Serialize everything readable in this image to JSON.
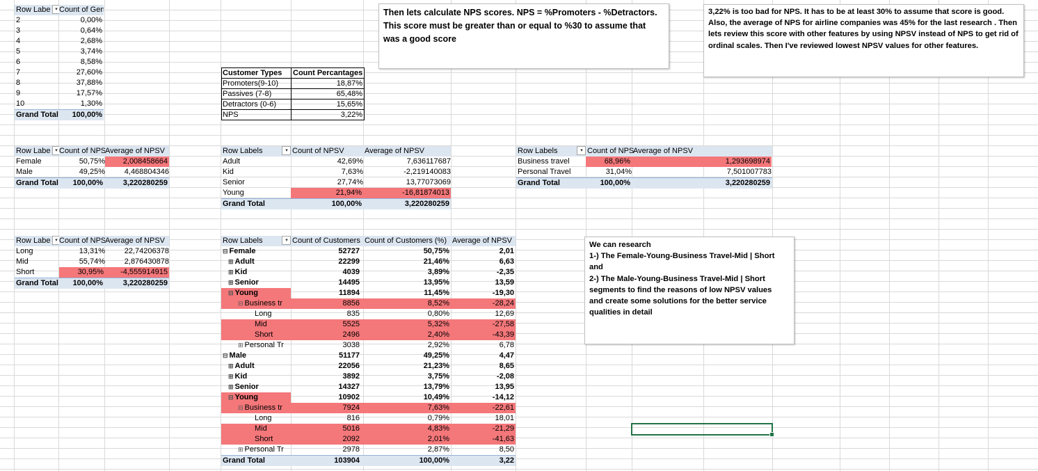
{
  "gender_pivot": {
    "headers": [
      "Row Labe",
      "Count of Gender"
    ],
    "rows": [
      [
        "2",
        "0,00%"
      ],
      [
        "3",
        "0,64%"
      ],
      [
        "4",
        "2,68%"
      ],
      [
        "5",
        "3,74%"
      ],
      [
        "6",
        "8,58%"
      ],
      [
        "7",
        "27,60%"
      ],
      [
        "8",
        "37,88%"
      ],
      [
        "9",
        "17,57%"
      ],
      [
        "10",
        "1,30%"
      ]
    ],
    "total": [
      "Grand Total",
      "100,00%"
    ]
  },
  "customer_types": {
    "headers": [
      "Customer Types",
      "Count Percantages"
    ],
    "rows": [
      [
        "Promoters(9-10)",
        "18,87%"
      ],
      [
        "Passives (7-8)",
        "65,48%"
      ],
      [
        "Detractors (0-6)",
        "15,65%"
      ],
      [
        "NPS",
        "3,22%"
      ]
    ]
  },
  "note_nps": "Then lets calculate NPS scores. NPS = %Promoters - %Detractors. This score must be greater than or equal to %30 to assume that was a good score",
  "note_bad": "3,22% is too bad for NPS. It has to be at least 30% to assume that score is good. Also, the average of NPS for airline companies was 45% for the last research . Then lets review this score with other features by using NPSV instead of NPS to get rid of ordinal scales. Then I've reviewed lowest NPSV values for other features.",
  "gender_npsv": {
    "headers": [
      "Row Labe",
      "Count of NPS",
      "Average of NPSV"
    ],
    "rows": [
      [
        "Female",
        "50,75%",
        "2,008458664"
      ],
      [
        "Male",
        "49,25%",
        "4,468804346"
      ]
    ],
    "total": [
      "Grand Total",
      "100,00%",
      "3,220280259"
    ]
  },
  "age_npsv": {
    "headers": [
      "Row Labels",
      "Count of NPSV",
      "Average of NPSV"
    ],
    "rows": [
      [
        "Adult",
        "42,69%",
        "7,636117687"
      ],
      [
        "Kid",
        "7,63%",
        "-2,219140083"
      ],
      [
        "Senior",
        "27,74%",
        "13,77073069"
      ],
      [
        "Young",
        "21,94%",
        "-16,81874013"
      ]
    ],
    "total": [
      "Grand Total",
      "100,00%",
      "3,220280259"
    ]
  },
  "travel_npsv": {
    "headers": [
      "Row Labels",
      "Count of NPS",
      "Average of NPSV"
    ],
    "rows": [
      [
        "Business travel",
        "68,96%",
        "1,293698974"
      ],
      [
        "Personal Travel",
        "31,04%",
        "7,501007783"
      ]
    ],
    "total": [
      "Grand Total",
      "100,00%",
      "3,220280259"
    ]
  },
  "distance_npsv": {
    "headers": [
      "Row Labe",
      "Count of NPS",
      "Average of NPSV"
    ],
    "rows": [
      [
        "Long",
        "13,31%",
        "22,74206378"
      ],
      [
        "Mid",
        "55,74%",
        "2,876430878"
      ],
      [
        "Short",
        "30,95%",
        "-4,555914915"
      ]
    ],
    "total": [
      "Grand Total",
      "100,00%",
      "3,220280259"
    ]
  },
  "segment_pivot": {
    "headers": [
      "Row Labels",
      "Count of Customers",
      "Count of Customers (%)",
      "Average of NPSV"
    ],
    "rows": [
      {
        "label": "Female",
        "sym": "⊟",
        "count": "52727",
        "pct": "50,75%",
        "avg": "2,01",
        "lvl": 0,
        "hl": false,
        "hlLabel": false
      },
      {
        "label": "Adult",
        "sym": "⊞",
        "count": "22299",
        "pct": "21,46%",
        "avg": "6,63",
        "lvl": 1,
        "hl": false,
        "hlLabel": false
      },
      {
        "label": "Kid",
        "sym": "⊞",
        "count": "4039",
        "pct": "3,89%",
        "avg": "-2,35",
        "lvl": 1,
        "hl": false,
        "hlLabel": false
      },
      {
        "label": "Senior",
        "sym": "⊞",
        "count": "14495",
        "pct": "13,95%",
        "avg": "13,59",
        "lvl": 1,
        "hl": false,
        "hlLabel": false
      },
      {
        "label": "Young",
        "sym": "⊟",
        "count": "11894",
        "pct": "11,45%",
        "avg": "-19,30",
        "lvl": 1,
        "hl": false,
        "hlLabel": true
      },
      {
        "label": "Business tr",
        "sym": "⊟",
        "count": "8856",
        "pct": "8,52%",
        "avg": "-28,24",
        "lvl": 2,
        "hl": true,
        "hlLabel": true
      },
      {
        "label": "Long",
        "sym": "",
        "count": "835",
        "pct": "0,80%",
        "avg": "12,69",
        "lvl": 3,
        "hl": false,
        "hlLabel": false
      },
      {
        "label": "Mid",
        "sym": "",
        "count": "5525",
        "pct": "5,32%",
        "avg": "-27,58",
        "lvl": 3,
        "hl": true,
        "hlLabel": true
      },
      {
        "label": "Short",
        "sym": "",
        "count": "2496",
        "pct": "2,40%",
        "avg": "-43,39",
        "lvl": 3,
        "hl": true,
        "hlLabel": true
      },
      {
        "label": "Personal Tr",
        "sym": "⊞",
        "count": "3038",
        "pct": "2,92%",
        "avg": "6,78",
        "lvl": 2,
        "hl": false,
        "hlLabel": false
      },
      {
        "label": "Male",
        "sym": "⊟",
        "count": "51177",
        "pct": "49,25%",
        "avg": "4,47",
        "lvl": 0,
        "hl": false,
        "hlLabel": false
      },
      {
        "label": "Adult",
        "sym": "⊞",
        "count": "22056",
        "pct": "21,23%",
        "avg": "8,65",
        "lvl": 1,
        "hl": false,
        "hlLabel": false
      },
      {
        "label": "Kid",
        "sym": "⊞",
        "count": "3892",
        "pct": "3,75%",
        "avg": "-2,08",
        "lvl": 1,
        "hl": false,
        "hlLabel": false
      },
      {
        "label": "Senior",
        "sym": "⊞",
        "count": "14327",
        "pct": "13,79%",
        "avg": "13,95",
        "lvl": 1,
        "hl": false,
        "hlLabel": false
      },
      {
        "label": "Young",
        "sym": "⊟",
        "count": "10902",
        "pct": "10,49%",
        "avg": "-14,12",
        "lvl": 1,
        "hl": false,
        "hlLabel": true
      },
      {
        "label": "Business tr",
        "sym": "⊟",
        "count": "7924",
        "pct": "7,63%",
        "avg": "-22,61",
        "lvl": 2,
        "hl": true,
        "hlLabel": true
      },
      {
        "label": "Long",
        "sym": "",
        "count": "816",
        "pct": "0,79%",
        "avg": "18,01",
        "lvl": 3,
        "hl": false,
        "hlLabel": false
      },
      {
        "label": "Mid",
        "sym": "",
        "count": "5016",
        "pct": "4,83%",
        "avg": "-21,29",
        "lvl": 3,
        "hl": true,
        "hlLabel": true
      },
      {
        "label": "Short",
        "sym": "",
        "count": "2092",
        "pct": "2,01%",
        "avg": "-41,63",
        "lvl": 3,
        "hl": true,
        "hlLabel": true
      },
      {
        "label": "Personal Tr",
        "sym": "⊞",
        "count": "2978",
        "pct": "2,87%",
        "avg": "8,50",
        "lvl": 2,
        "hl": false,
        "hlLabel": false
      }
    ],
    "total": [
      "Grand Total",
      "103904",
      "100,00%",
      "3,22"
    ]
  },
  "note_research": {
    "line1": "We can research",
    "line2": "1-) The Female-Young-Business Travel-Mid | Short",
    "line3": "and",
    "line4": "2-) The Male-Young-Business Travel-Mid | Short",
    "line5": "segments to find the reasons of low NPSV values",
    "line6": "and create some solutions for the better service",
    "line7": "qualities in detail"
  },
  "colors": {
    "highlight": "#f4777a",
    "header": "#dce6f1",
    "selection": "#217346"
  }
}
